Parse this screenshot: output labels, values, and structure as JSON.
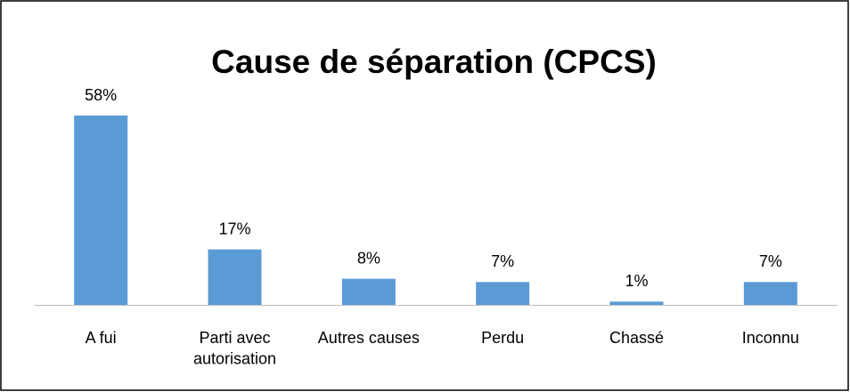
{
  "chart_data": {
    "type": "bar",
    "title": "Cause de séparation (CPCS)",
    "categories": [
      "A fui",
      "Parti avec autorisation",
      "Autres causes",
      "Perdu",
      "Chassé",
      "Inconnu"
    ],
    "values": [
      58,
      17,
      8,
      7,
      1,
      7
    ],
    "value_labels": [
      "58%",
      "17%",
      "8%",
      "7%",
      "1%",
      "7%"
    ],
    "color": "#5b9bd5"
  }
}
